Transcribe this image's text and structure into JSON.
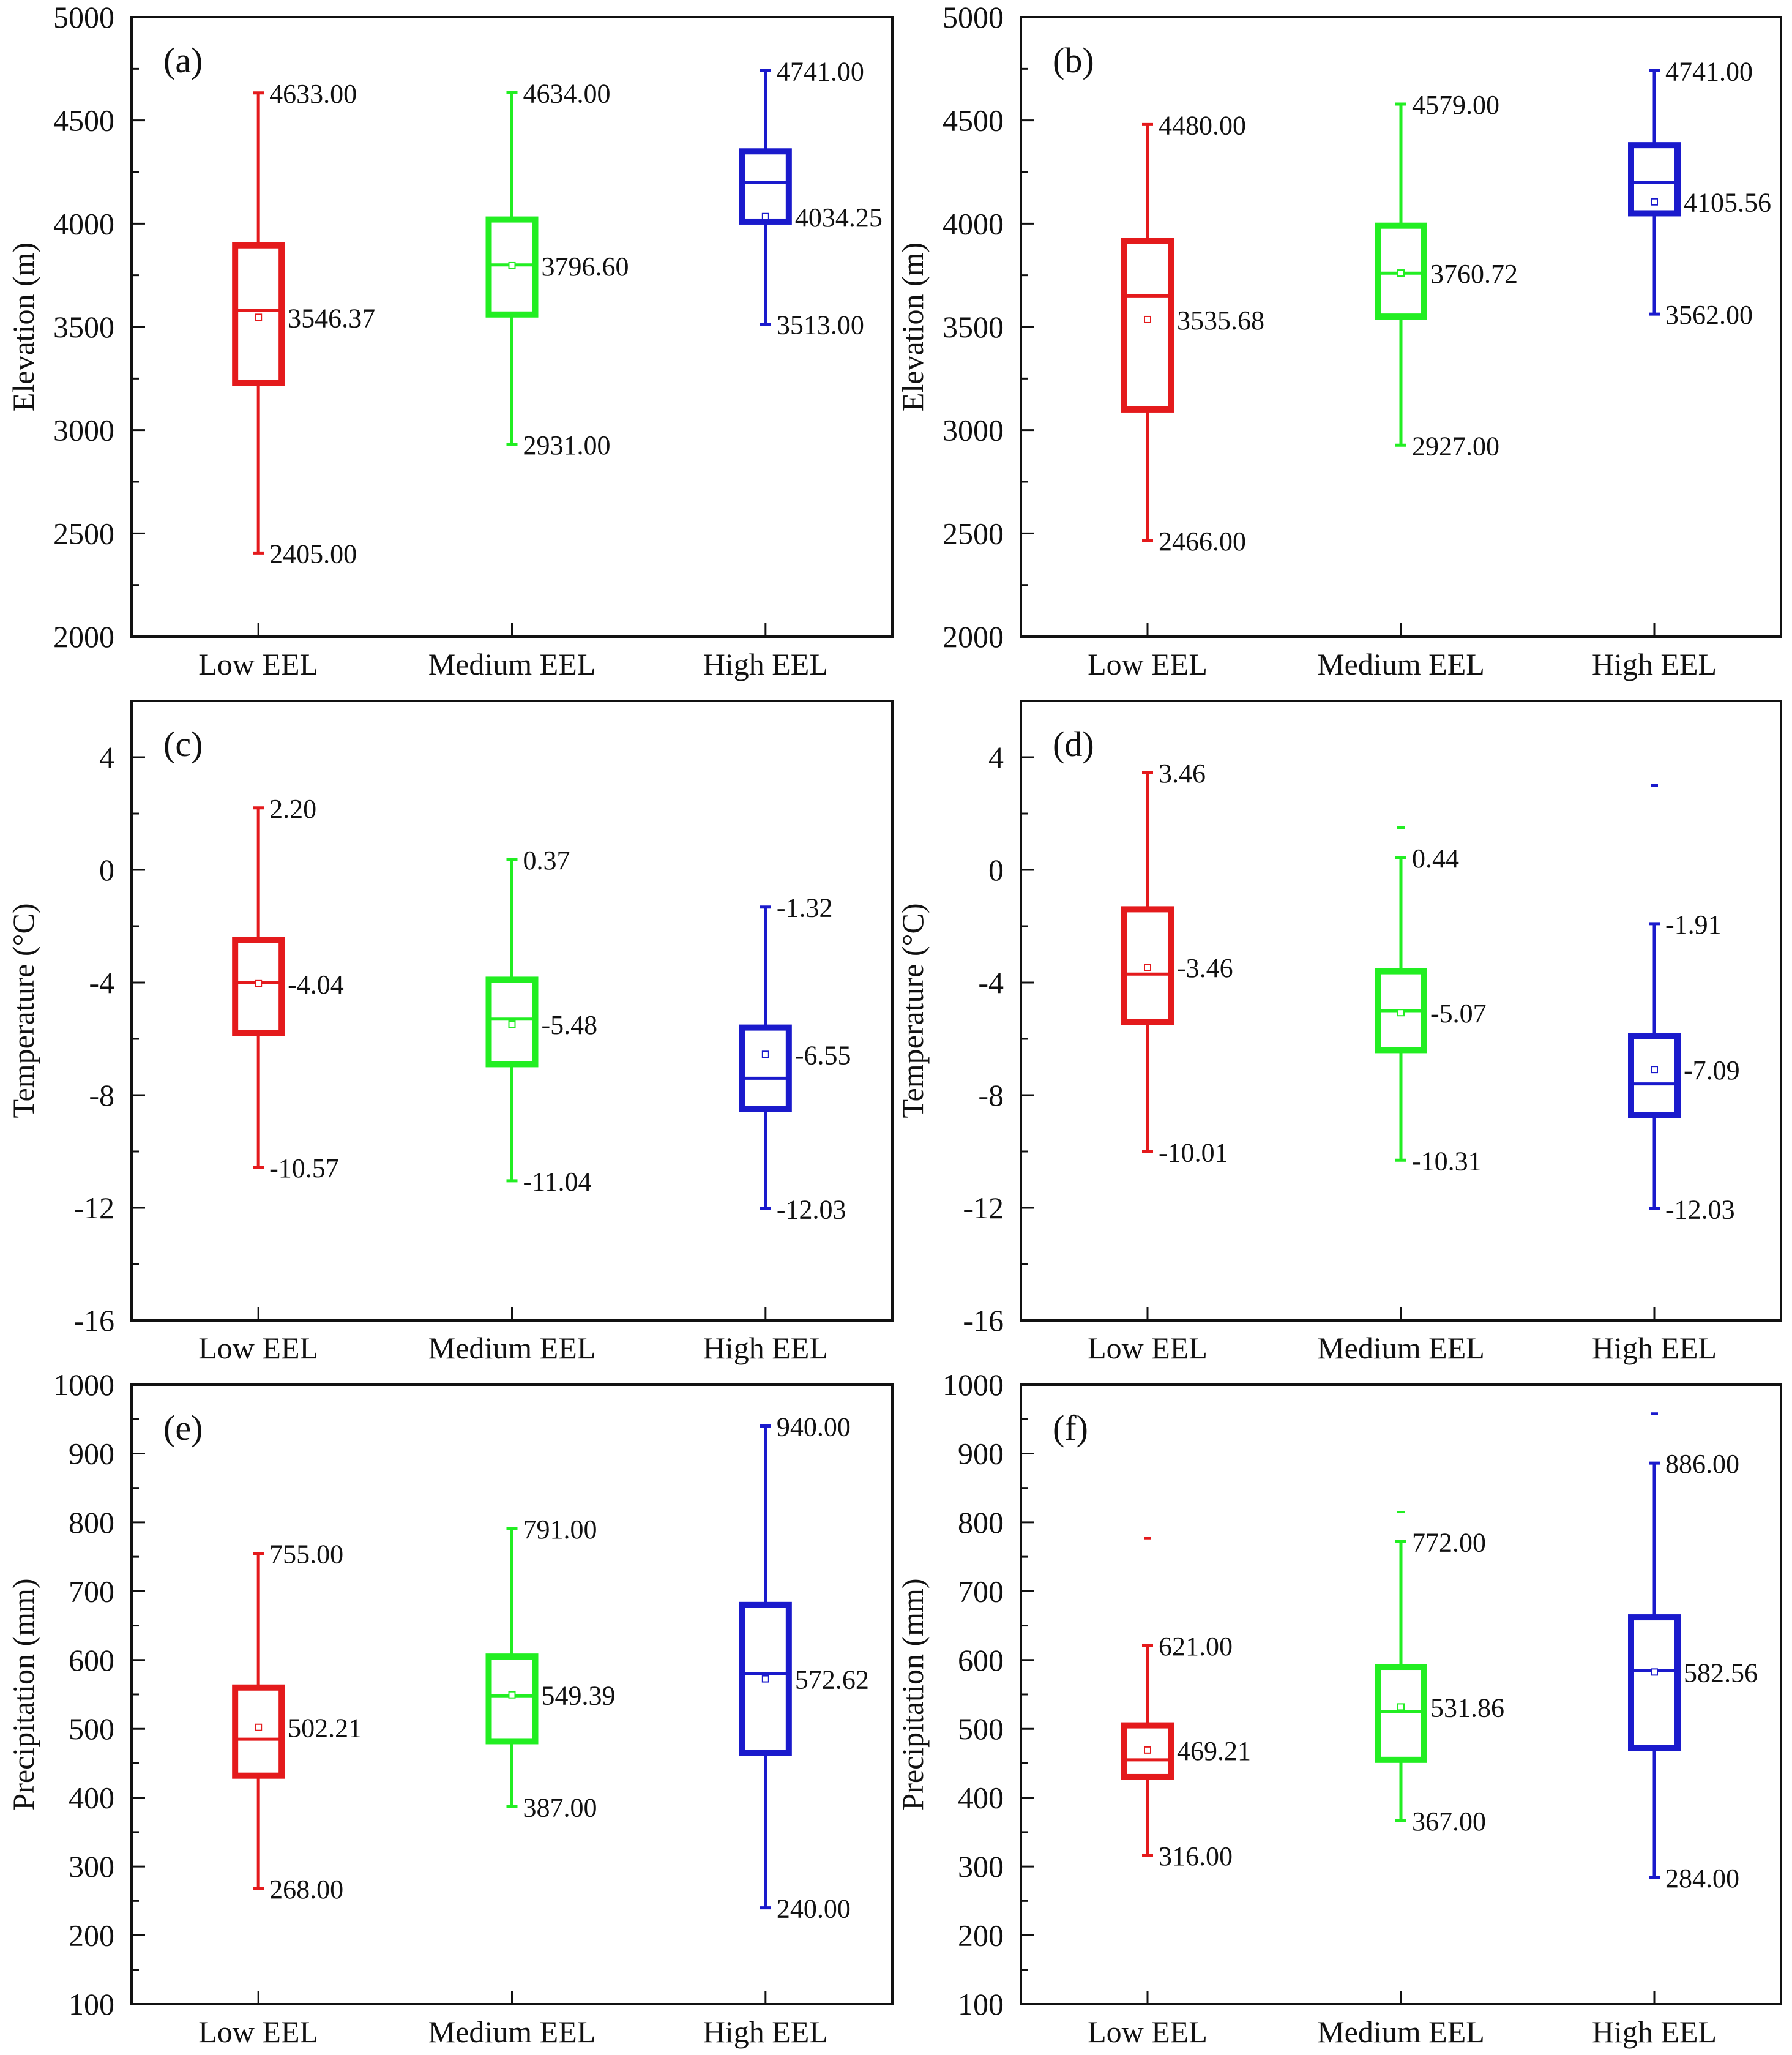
{
  "figure": {
    "categories": [
      "Low EEL",
      "Medium EEL",
      "High EEL"
    ],
    "colors": {
      "Low EEL": "#e41a1c",
      "Medium EEL": "#22ee22",
      "High EEL": "#1a1acc"
    }
  },
  "chart_data": [
    {
      "panel": "(a)",
      "type": "box",
      "ylabel": "Elevation (m)",
      "xlabel": "",
      "ylim": [
        2000,
        5000
      ],
      "yticks": [
        "2000",
        "2500",
        "3000",
        "3500",
        "4000",
        "4500",
        "5000"
      ],
      "categories": [
        "Low EEL",
        "Medium EEL",
        "High EEL"
      ],
      "boxes": [
        {
          "category": "Low EEL",
          "min": 2405,
          "q1": 3230,
          "median": 3580,
          "q3": 3895,
          "max": 4633,
          "mean": 3546.37,
          "outliers": [],
          "labels": {
            "max": "4633.00",
            "mean": "3546.37",
            "min": "2405.00"
          }
        },
        {
          "category": "Medium EEL",
          "min": 2931,
          "q1": 3560,
          "median": 3800,
          "q3": 4020,
          "max": 4634,
          "mean": 3796.6,
          "outliers": [],
          "labels": {
            "max": "4634.00",
            "mean": "3796.60",
            "min": "2931.00"
          }
        },
        {
          "category": "High EEL",
          "min": 3513,
          "q1": 4010,
          "median": 4200,
          "q3": 4350,
          "max": 4741,
          "mean": 4034.25,
          "outliers": [],
          "labels": {
            "max": "4741.00",
            "mean": "4034.25",
            "min": "3513.00"
          }
        }
      ]
    },
    {
      "panel": "(b)",
      "type": "box",
      "ylabel": "Elevation (m)",
      "xlabel": "",
      "ylim": [
        2000,
        5000
      ],
      "yticks": [
        "2000",
        "2500",
        "3000",
        "3500",
        "4000",
        "4500",
        "5000"
      ],
      "categories": [
        "Low EEL",
        "Medium EEL",
        "High EEL"
      ],
      "boxes": [
        {
          "category": "Low EEL",
          "min": 2466,
          "q1": 3100,
          "median": 3650,
          "q3": 3915,
          "max": 4480,
          "mean": 3535.68,
          "outliers": [],
          "labels": {
            "max": "4480.00",
            "mean": "3535.68",
            "min": "2466.00"
          }
        },
        {
          "category": "Medium EEL",
          "min": 2927,
          "q1": 3550,
          "median": 3760,
          "q3": 3990,
          "max": 4579,
          "mean": 3760.72,
          "outliers": [],
          "labels": {
            "max": "4579.00",
            "mean": "3760.72",
            "min": "2927.00"
          }
        },
        {
          "category": "High EEL",
          "min": 3562,
          "q1": 4050,
          "median": 4200,
          "q3": 4380,
          "max": 4741,
          "mean": 4105.56,
          "outliers": [],
          "labels": {
            "max": "4741.00",
            "mean": "4105.56",
            "min": "3562.00"
          }
        }
      ]
    },
    {
      "panel": "(c)",
      "type": "box",
      "ylabel": "Temperature (°C)",
      "xlabel": "",
      "ylim": [
        -16,
        6
      ],
      "yticks": [
        "-16",
        "-12",
        "-8",
        "-4",
        "0",
        "4"
      ],
      "categories": [
        "Low EEL",
        "Medium EEL",
        "High EEL"
      ],
      "boxes": [
        {
          "category": "Low EEL",
          "min": -10.57,
          "q1": -5.8,
          "median": -4.0,
          "q3": -2.5,
          "max": 2.2,
          "mean": -4.04,
          "outliers": [],
          "labels": {
            "max": "2.20",
            "mean": "-4.04",
            "min": "-10.57"
          }
        },
        {
          "category": "Medium EEL",
          "min": -11.04,
          "q1": -6.9,
          "median": -5.3,
          "q3": -3.9,
          "max": 0.37,
          "mean": -5.48,
          "outliers": [],
          "labels": {
            "max": "0.37",
            "mean": "-5.48",
            "min": "-11.04"
          }
        },
        {
          "category": "High EEL",
          "min": -12.03,
          "q1": -8.5,
          "median": -7.4,
          "q3": -5.6,
          "max": -1.32,
          "mean": -6.55,
          "outliers": [],
          "labels": {
            "max": "-1.32",
            "mean": "-6.55",
            "min": "-12.03"
          }
        }
      ]
    },
    {
      "panel": "(d)",
      "type": "box",
      "ylabel": "Temperature (°C)",
      "xlabel": "",
      "ylim": [
        -16,
        6
      ],
      "yticks": [
        "-16",
        "-12",
        "-8",
        "-4",
        "0",
        "4"
      ],
      "categories": [
        "Low EEL",
        "Medium EEL",
        "High EEL"
      ],
      "boxes": [
        {
          "category": "Low EEL",
          "min": -10.01,
          "q1": -5.4,
          "median": -3.7,
          "q3": -1.4,
          "max": 3.46,
          "mean": -3.46,
          "outliers": [],
          "labels": {
            "max": "3.46",
            "mean": "-3.46",
            "min": "-10.01"
          }
        },
        {
          "category": "Medium EEL",
          "min": -10.31,
          "q1": -6.4,
          "median": -5.0,
          "q3": -3.6,
          "max": 0.44,
          "mean": -5.07,
          "outliers": [
            1.5
          ],
          "labels": {
            "max": "0.44",
            "mean": "-5.07",
            "min": "-10.31"
          }
        },
        {
          "category": "High EEL",
          "min": -12.03,
          "q1": -8.7,
          "median": -7.6,
          "q3": -5.9,
          "max": -1.91,
          "mean": -7.09,
          "outliers": [
            3.0
          ],
          "labels": {
            "max": "-1.91",
            "mean": "-7.09",
            "min": "-12.03"
          }
        }
      ]
    },
    {
      "panel": "(e)",
      "type": "box",
      "ylabel": "Precipitation (mm)",
      "xlabel": "",
      "ylim": [
        100,
        1000
      ],
      "yticks": [
        "100",
        "200",
        "300",
        "400",
        "500",
        "600",
        "700",
        "800",
        "900",
        "1000"
      ],
      "categories": [
        "Low EEL",
        "Medium EEL",
        "High EEL"
      ],
      "boxes": [
        {
          "category": "Low EEL",
          "min": 268,
          "q1": 432,
          "median": 485,
          "q3": 560,
          "max": 755,
          "mean": 502.21,
          "outliers": [],
          "labels": {
            "max": "755.00",
            "mean": "502.21",
            "min": "268.00"
          }
        },
        {
          "category": "Medium EEL",
          "min": 387,
          "q1": 482,
          "median": 548,
          "q3": 605,
          "max": 791,
          "mean": 549.39,
          "outliers": [],
          "labels": {
            "max": "791.00",
            "mean": "549.39",
            "min": "387.00"
          }
        },
        {
          "category": "High EEL",
          "min": 240,
          "q1": 465,
          "median": 580,
          "q3": 680,
          "max": 940,
          "mean": 572.62,
          "outliers": [],
          "labels": {
            "max": "940.00",
            "mean": "572.62",
            "min": "240.00"
          }
        }
      ]
    },
    {
      "panel": "(f)",
      "type": "box",
      "ylabel": "Precipitation (mm)",
      "xlabel": "",
      "ylim": [
        100,
        1000
      ],
      "yticks": [
        "100",
        "200",
        "300",
        "400",
        "500",
        "600",
        "700",
        "800",
        "900",
        "1000"
      ],
      "categories": [
        "Low EEL",
        "Medium EEL",
        "High EEL"
      ],
      "boxes": [
        {
          "category": "Low EEL",
          "min": 316,
          "q1": 430,
          "median": 455,
          "q3": 505,
          "max": 621,
          "mean": 469.21,
          "outliers": [
            777
          ],
          "labels": {
            "max": "621.00",
            "mean": "469.21",
            "min": "316.00"
          }
        },
        {
          "category": "Medium EEL",
          "min": 367,
          "q1": 455,
          "median": 525,
          "q3": 590,
          "max": 772,
          "mean": 531.86,
          "outliers": [
            815
          ],
          "labels": {
            "max": "772.00",
            "mean": "531.86",
            "min": "367.00"
          }
        },
        {
          "category": "High EEL",
          "min": 284,
          "q1": 472,
          "median": 585,
          "q3": 662,
          "max": 886,
          "mean": 582.56,
          "outliers": [
            958
          ],
          "labels": {
            "max": "886.00",
            "mean": "582.56",
            "min": "284.00"
          }
        }
      ]
    }
  ]
}
